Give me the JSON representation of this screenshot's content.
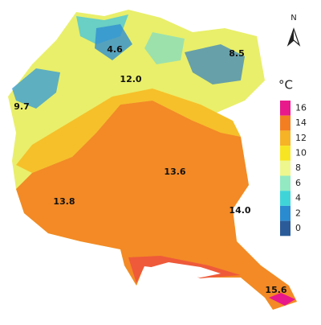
{
  "north": "N",
  "legend": {
    "unit": "°C",
    "entries": [
      {
        "label": "16",
        "color": "#e8198b"
      },
      {
        "label": "14",
        "color": "#f37e22"
      },
      {
        "label": "12",
        "color": "#f6b325"
      },
      {
        "label": "10",
        "color": "#f7e523"
      },
      {
        "label": "8",
        "color": "#eef78e"
      },
      {
        "label": "6",
        "color": "#92e9c2"
      },
      {
        "label": "4",
        "color": "#3fd5d8"
      },
      {
        "label": "2",
        "color": "#2b8bd0"
      },
      {
        "label": "0",
        "color": "#2b5c99"
      }
    ]
  },
  "map_labels": [
    {
      "text": "4.6",
      "color": "#c0106e"
    },
    {
      "text": "8.5",
      "color": "#111111"
    },
    {
      "text": "12.0",
      "color": "#111111"
    },
    {
      "text": "9.7",
      "color": "#111111"
    },
    {
      "text": "13.6",
      "color": "#111111"
    },
    {
      "text": "13.8",
      "color": "#111111"
    },
    {
      "text": "14.0",
      "color": "#111111"
    },
    {
      "text": "15.6",
      "color": "#111111"
    }
  ]
}
